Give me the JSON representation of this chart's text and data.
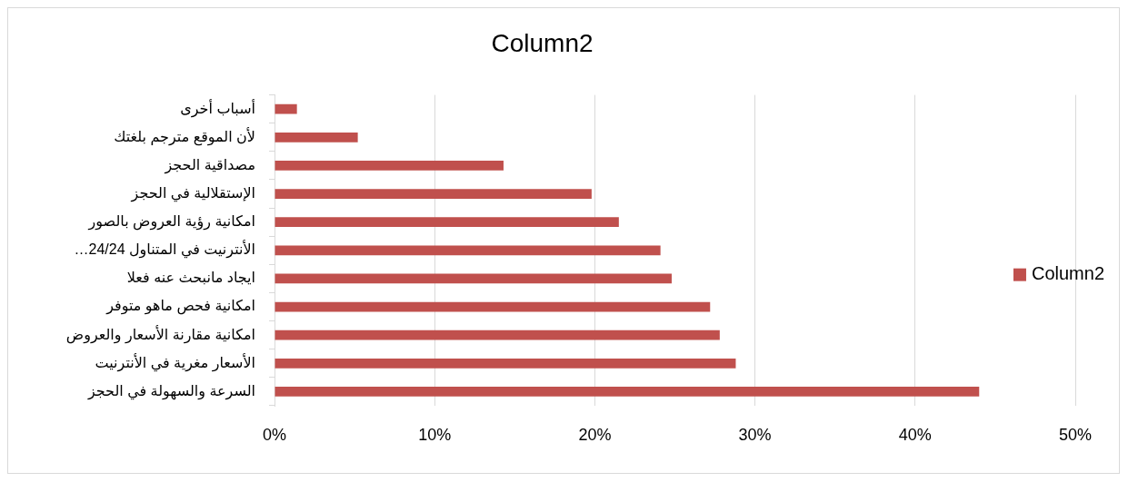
{
  "chart_data": {
    "type": "bar",
    "title": "Column2",
    "orientation": "horizontal",
    "categories": [
      "أسباب أخرى",
      "لأن الموقع مترجم بلغتك",
      "مصداقية الحجز",
      "الإستقلالية في الحجز",
      "امكانية رؤية العروض بالصور",
      "الأنترنيت في المتناول 24/24…",
      "ايجاد مانبحث عنه فعلا",
      "امكانية فحص ماهو متوفر",
      "امكانية مقارنة الأسعار والعروض",
      "الأسعار مغرية في الأنترنيت",
      "السرعة والسهولة في الحجز"
    ],
    "series": [
      {
        "name": "Column2",
        "color": "#c0504d",
        "values": [
          1.4,
          5.2,
          14.3,
          19.8,
          21.5,
          24.1,
          24.8,
          27.2,
          27.8,
          28.8,
          44
        ]
      }
    ],
    "xlim": [
      0,
      50
    ],
    "xticks": [
      {
        "value": 0,
        "label": "0%"
      },
      {
        "value": 10,
        "label": "10%"
      },
      {
        "value": 20,
        "label": "20%"
      },
      {
        "value": 30,
        "label": "30%"
      },
      {
        "value": 40,
        "label": "40%"
      },
      {
        "value": 50,
        "label": "50%"
      }
    ],
    "grid": "x",
    "legend": "right"
  }
}
